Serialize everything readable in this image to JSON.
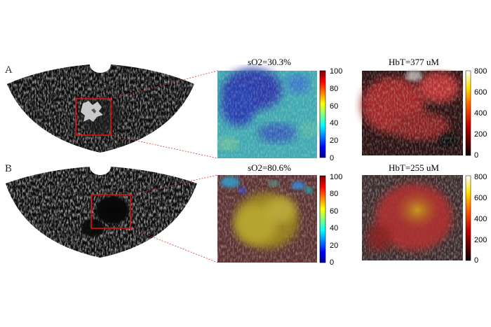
{
  "panels": [
    {
      "letter": "A",
      "so2_title": "sO2=30.3%",
      "hbt_title": "HbT=377 uM",
      "so2_ticks": [
        "100",
        "80",
        "60",
        "40",
        "20",
        "0"
      ],
      "hbt_ticks": [
        "800",
        "600",
        "400",
        "200",
        "0"
      ]
    },
    {
      "letter": "B",
      "so2_title": "sO2=80.6%",
      "hbt_title": "HbT=255 uM",
      "so2_ticks": [
        "100",
        "80",
        "60",
        "40",
        "20",
        "0"
      ],
      "hbt_ticks": [
        "800",
        "600",
        "400",
        "200",
        "0"
      ]
    }
  ],
  "colors": {
    "roi_box": "#e01010",
    "zoom_lines": "#e03030",
    "ultrasound_bg": "#000000"
  }
}
